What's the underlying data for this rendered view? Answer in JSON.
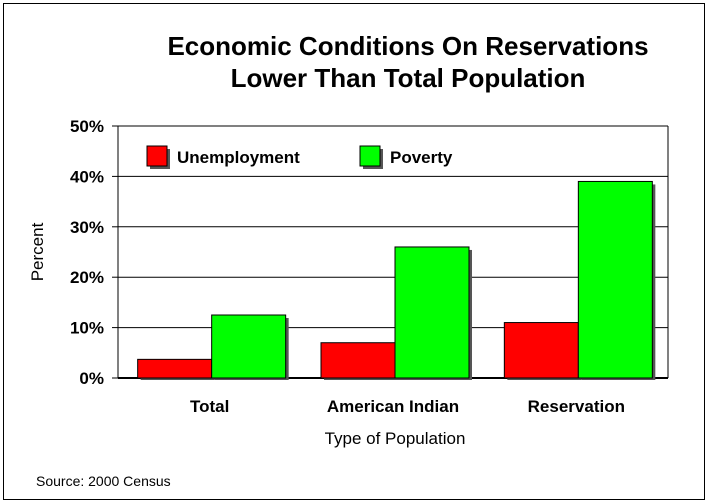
{
  "chart_data": {
    "type": "bar",
    "title_line1": "Economic Conditions On Reservations",
    "title_line2": "Lower Than Total Population",
    "xlabel": "Type of Population",
    "ylabel": "Percent",
    "categories": [
      "Total",
      "American Indian",
      "Reservation"
    ],
    "series": [
      {
        "name": "Unemployment",
        "color": "#ff0000",
        "values": [
          3.7,
          7.0,
          11.0
        ]
      },
      {
        "name": "Poverty",
        "color": "#00ff00",
        "values": [
          12.5,
          26.0,
          39.0
        ]
      }
    ],
    "ylim": [
      0,
      50
    ],
    "yticks": [
      0,
      10,
      20,
      30,
      40,
      50
    ],
    "ytick_labels": [
      "0%",
      "10%",
      "20%",
      "30%",
      "40%",
      "50%"
    ],
    "grid": true,
    "legend_position": "top-left",
    "source": "Source: 2000 Census"
  }
}
